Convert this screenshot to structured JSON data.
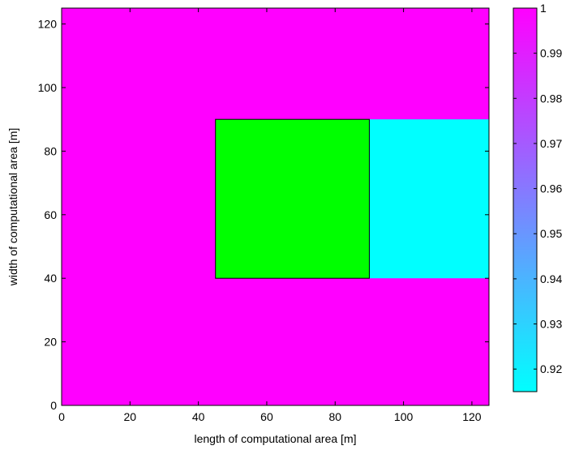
{
  "chart_data": {
    "type": "heatmap",
    "xlabel": "length of computational area [m]",
    "ylabel": "width of computational area [m]",
    "xlim": [
      0,
      125
    ],
    "ylim": [
      0,
      125
    ],
    "xticks": [
      "0",
      "20",
      "40",
      "60",
      "80",
      "100",
      "120"
    ],
    "yticks": [
      "0",
      "20",
      "40",
      "60",
      "80",
      "100",
      "120"
    ],
    "grid": false,
    "background_value": 1.0,
    "wake": {
      "x_from": 90,
      "x_to": 125,
      "y_from": 40,
      "y_to": 90,
      "value": 0.915
    },
    "obstacle": {
      "x_from": 45,
      "x_to": 90,
      "y_from": 40,
      "y_to": 90,
      "color": "#00ff00"
    },
    "colorbar": {
      "min": 0.915,
      "max": 1.0,
      "ticks": [
        "0.92",
        "0.93",
        "0.94",
        "0.95",
        "0.96",
        "0.97",
        "0.98",
        "0.99",
        "1"
      ],
      "colormap": "cool",
      "low_color": "#00ffff",
      "high_color": "#ff00ff",
      "location": "right"
    }
  }
}
